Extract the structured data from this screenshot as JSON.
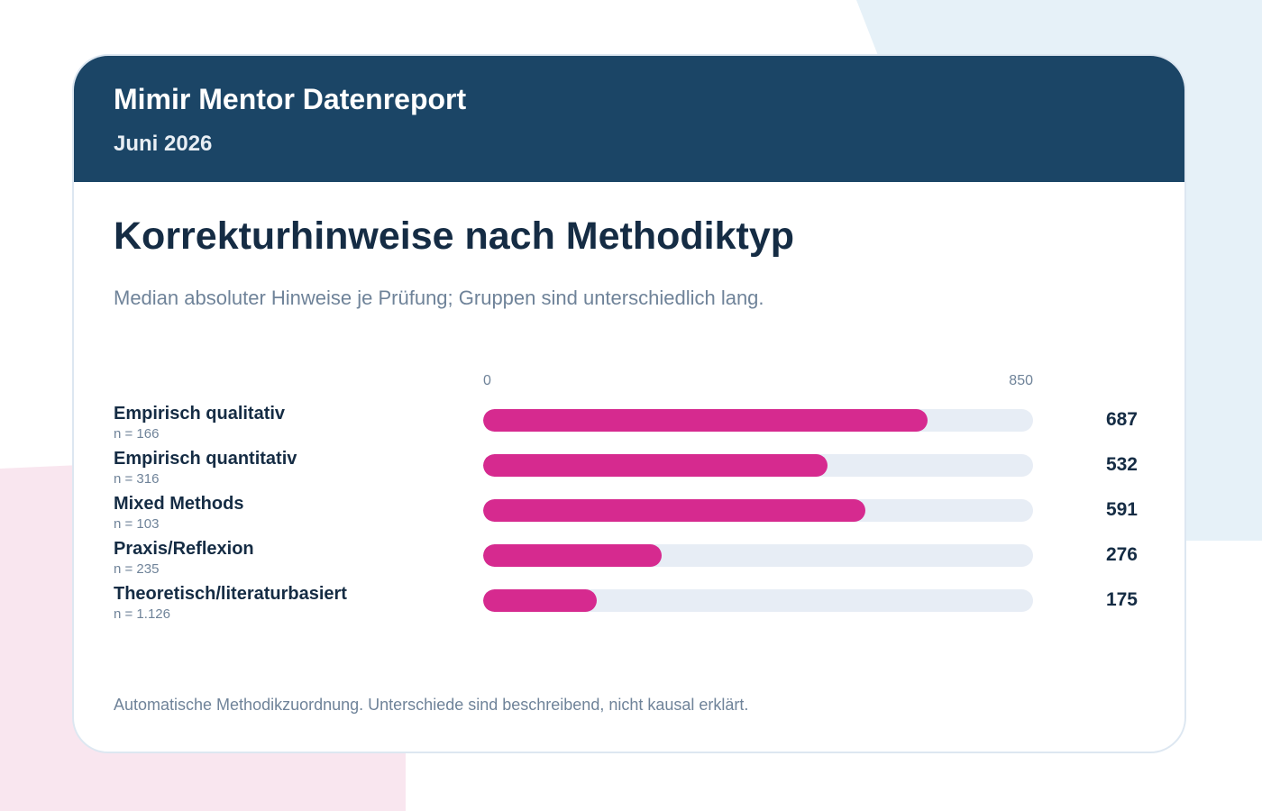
{
  "header": {
    "title": "Mimir Mentor Datenreport",
    "subtitle": "Juni 2026"
  },
  "footnote": "Automatische Methodikzuordnung. Unterschiede sind beschreibend, nicht kausal erklärt.",
  "colors": {
    "header_bg": "#1b4566",
    "bar_fill": "#d62a8f",
    "bar_track": "#e7edf5",
    "text_dark": "#152c44",
    "text_muted": "#6f8399"
  },
  "chart_data": {
    "type": "bar",
    "orientation": "horizontal",
    "title": "Korrekturhinweise nach Methodiktyp",
    "subtitle": "Median absoluter Hinweise je Prüfung; Gruppen sind unterschiedlich lang.",
    "axis": {
      "min_label": "0",
      "max_label": "850",
      "xlim": [
        0,
        850
      ]
    },
    "grid": false,
    "categories": [
      "Empirisch qualitativ",
      "Empirisch quantitativ",
      "Mixed Methods",
      "Praxis/Reflexion",
      "Theoretisch/literaturbasiert"
    ],
    "sample_sizes": [
      "n = 166",
      "n = 316",
      "n = 103",
      "n = 235",
      "n = 1.126"
    ],
    "values": [
      687,
      532,
      591,
      276,
      175
    ]
  }
}
